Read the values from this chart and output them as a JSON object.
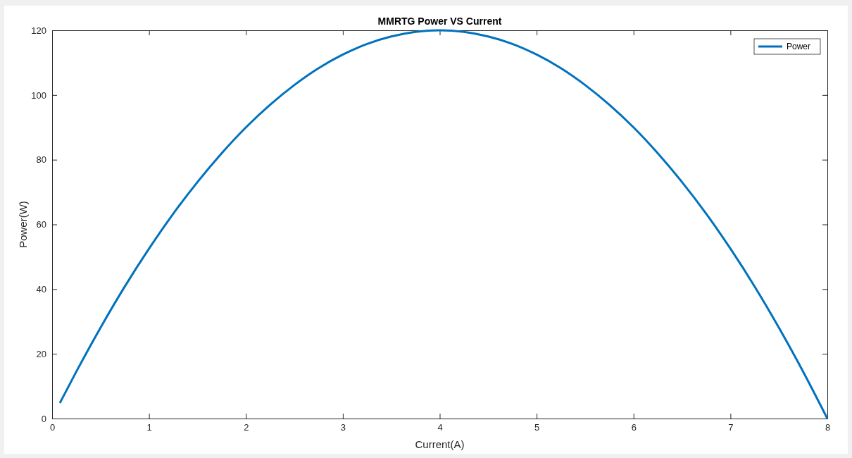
{
  "chart_data": {
    "type": "line",
    "title": "MMRTG Power VS Current",
    "xlabel": "Current(A)",
    "ylabel": "Power(W)",
    "x": [
      0.08,
      0.25,
      0.5,
      0.75,
      1,
      1.25,
      1.5,
      1.75,
      2,
      2.25,
      2.5,
      2.75,
      3,
      3.25,
      3.5,
      3.75,
      4,
      4.25,
      4.5,
      4.75,
      5,
      5.25,
      5.5,
      5.75,
      6,
      6.25,
      6.5,
      6.75,
      7,
      7.25,
      7.5,
      7.75,
      8
    ],
    "series": [
      {
        "name": "Power",
        "color": "#0072bd",
        "values": [
          4.8,
          14.5,
          28.1,
          40.8,
          52.5,
          63.3,
          73.1,
          82.0,
          90,
          97.0,
          103.1,
          108.3,
          112.5,
          115.8,
          118.1,
          119.5,
          120,
          119.5,
          118.1,
          115.8,
          112.5,
          108.3,
          103.1,
          97.0,
          90,
          82.0,
          73.1,
          63.3,
          52.5,
          40.8,
          28.1,
          14.5,
          0
        ]
      }
    ],
    "xlim": [
      0,
      8
    ],
    "xticks": [
      0,
      1,
      2,
      3,
      4,
      5,
      6,
      7,
      8
    ],
    "ylim": [
      0,
      120
    ],
    "yticks": [
      0,
      20,
      40,
      60,
      80,
      100,
      120
    ],
    "grid": false,
    "legend": "top right",
    "marker": "none",
    "line_style": "solid"
  }
}
